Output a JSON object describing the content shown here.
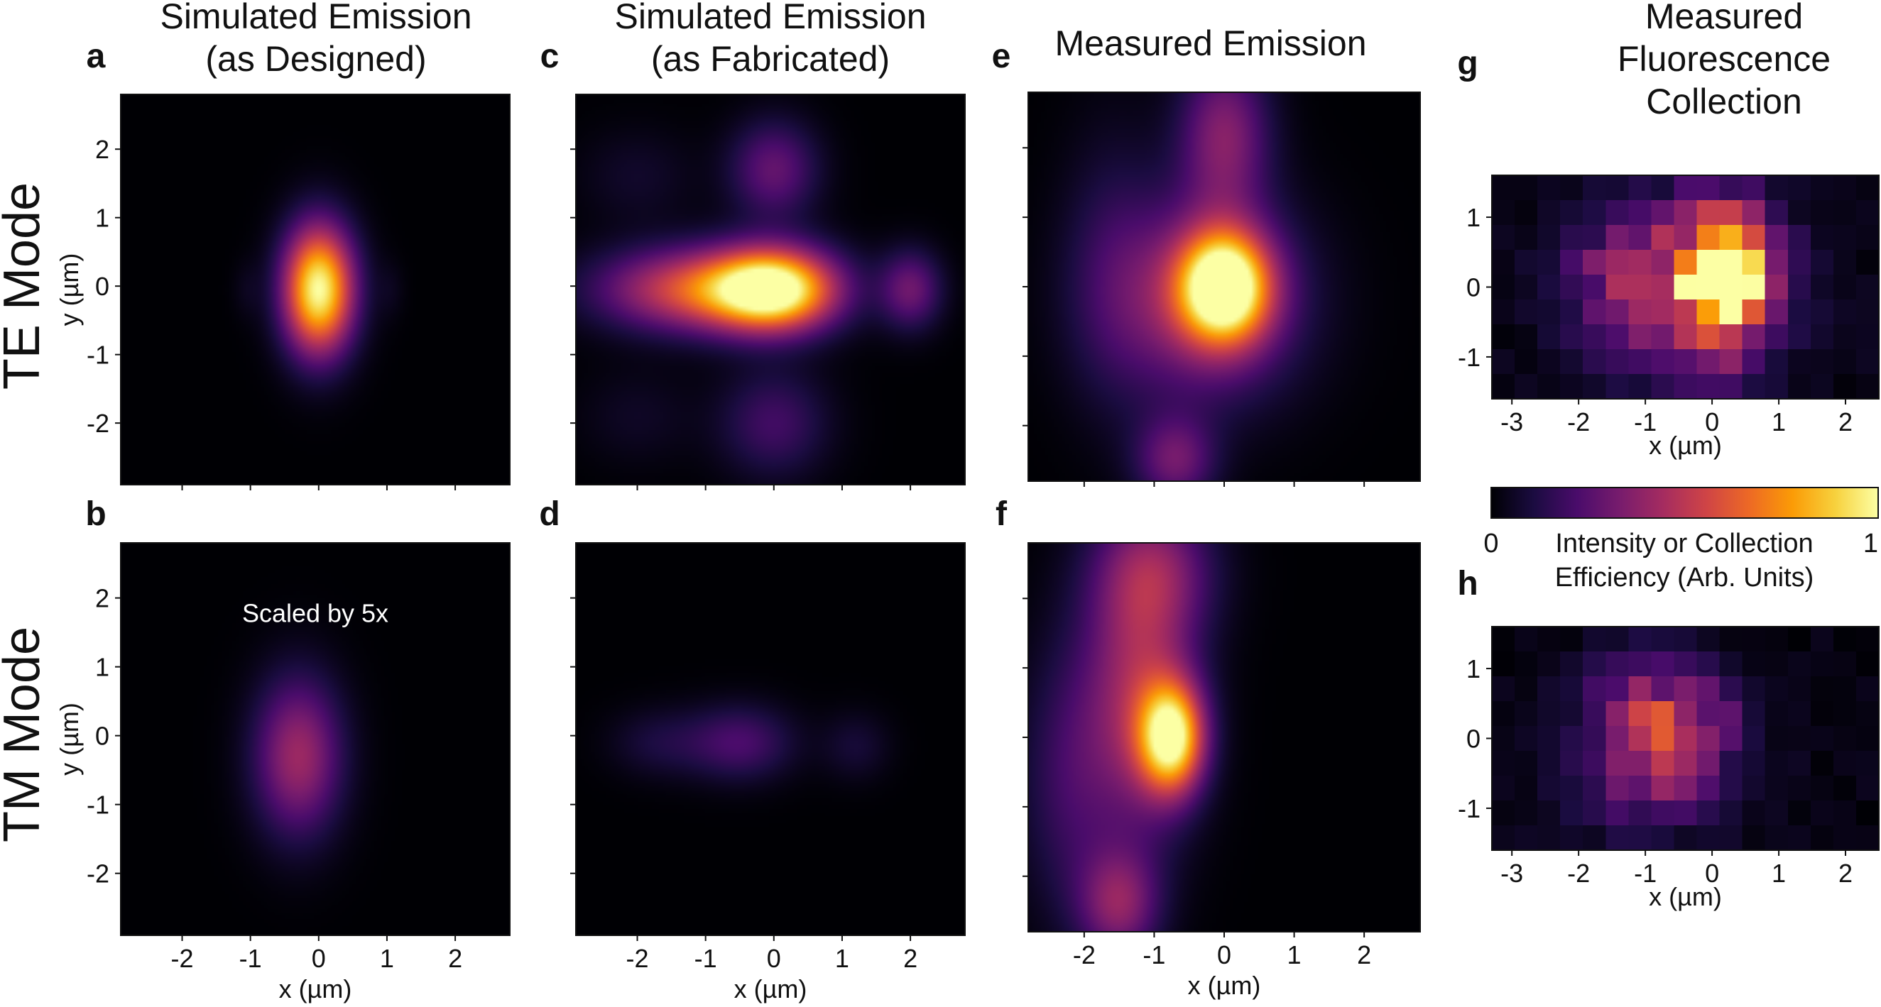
{
  "figure": {
    "row_labels": [
      "TE Mode",
      "TM Mode"
    ],
    "colorbar": {
      "min_label": "0",
      "max_label": "1",
      "label_line1": "Intensity or Collection",
      "label_line2": "Efficiency (Arb. Units)",
      "colormap": "inferno",
      "stops": [
        "#000004",
        "#1b0c41",
        "#4a0c6b",
        "#781c6d",
        "#a52c60",
        "#cf4446",
        "#ed6925",
        "#fb9b06",
        "#f7d13d",
        "#fcffa4"
      ]
    }
  },
  "chart_data": [
    {
      "id": "a",
      "panel_label": "a",
      "type": "heatmap",
      "title_lines": [
        "Simulated Emission",
        "(as Designed)"
      ],
      "xlabel": "",
      "ylabel": "y (µm)",
      "xlim": [
        -2.9,
        2.8
      ],
      "ylim": [
        -2.9,
        2.8
      ],
      "xticks": [
        "-2",
        "-1",
        "0",
        "1",
        "2"
      ],
      "yticks": [
        "-2",
        "-1",
        "0",
        "1",
        "2"
      ],
      "show_xticklabels": false,
      "show_yticklabels": true,
      "smooth": true,
      "blobs": [
        {
          "x": 0.0,
          "y": -0.05,
          "sx": 0.36,
          "sy": 0.65,
          "amp": 1.0
        },
        {
          "x": -1.05,
          "y": -0.05,
          "sx": 0.15,
          "sy": 0.3,
          "amp": 0.04
        },
        {
          "x": 1.05,
          "y": -0.05,
          "sx": 0.15,
          "sy": 0.3,
          "amp": 0.04
        }
      ]
    },
    {
      "id": "b",
      "panel_label": "b",
      "type": "heatmap",
      "title_lines": [],
      "xlabel": "x (µm)",
      "ylabel": "y (µm)",
      "xlim": [
        -2.9,
        2.8
      ],
      "ylim": [
        -2.9,
        2.8
      ],
      "xticks": [
        "-2",
        "-1",
        "0",
        "1",
        "2"
      ],
      "yticks": [
        "-2",
        "-1",
        "0",
        "1",
        "2"
      ],
      "show_xticklabels": true,
      "show_yticklabels": true,
      "smooth": true,
      "annotation": "Scaled by 5x",
      "blobs": [
        {
          "x": -0.3,
          "y": -0.3,
          "sx": 0.45,
          "sy": 0.8,
          "amp": 0.42
        }
      ]
    },
    {
      "id": "c",
      "panel_label": "c",
      "type": "heatmap",
      "title_lines": [
        "Simulated Emission",
        "(as Fabricated)"
      ],
      "xlabel": "",
      "ylabel": "",
      "xlim": [
        -2.9,
        2.8
      ],
      "ylim": [
        -2.9,
        2.8
      ],
      "xticks": [
        "-2",
        "-1",
        "0",
        "1",
        "2"
      ],
      "yticks": [
        "-2",
        "-1",
        "0",
        "1",
        "2"
      ],
      "show_xticklabels": false,
      "show_yticklabels": false,
      "smooth": true,
      "blobs": [
        {
          "x": 0.0,
          "y": -0.05,
          "sx": 0.65,
          "sy": 0.42,
          "amp": 1.0
        },
        {
          "x": -1.2,
          "y": -0.05,
          "sx": 0.95,
          "sy": 0.42,
          "amp": 0.55
        },
        {
          "x": 2.0,
          "y": -0.05,
          "sx": 0.32,
          "sy": 0.4,
          "amp": 0.3
        },
        {
          "x": 0.0,
          "y": 1.7,
          "sx": 0.45,
          "sy": 0.5,
          "amp": 0.28
        },
        {
          "x": 0.0,
          "y": -2.0,
          "sx": 0.55,
          "sy": 0.55,
          "amp": 0.2
        },
        {
          "x": -2.0,
          "y": 1.6,
          "sx": 0.6,
          "sy": 0.5,
          "amp": 0.07
        },
        {
          "x": -2.0,
          "y": -1.9,
          "sx": 0.6,
          "sy": 0.5,
          "amp": 0.06
        }
      ]
    },
    {
      "id": "d",
      "panel_label": "d",
      "type": "heatmap",
      "title_lines": [],
      "xlabel": "x (µm)",
      "ylabel": "",
      "xlim": [
        -2.9,
        2.8
      ],
      "ylim": [
        -2.9,
        2.8
      ],
      "xticks": [
        "-2",
        "-1",
        "0",
        "1",
        "2"
      ],
      "yticks": [
        "-2",
        "-1",
        "0",
        "1",
        "2"
      ],
      "show_xticklabels": true,
      "show_yticklabels": false,
      "smooth": true,
      "blobs": [
        {
          "x": -0.5,
          "y": -0.1,
          "sx": 0.55,
          "sy": 0.38,
          "amp": 0.22
        },
        {
          "x": -1.7,
          "y": -0.1,
          "sx": 0.5,
          "sy": 0.35,
          "amp": 0.1
        },
        {
          "x": 1.2,
          "y": -0.15,
          "sx": 0.35,
          "sy": 0.35,
          "amp": 0.09
        }
      ]
    },
    {
      "id": "e",
      "panel_label": "e",
      "type": "heatmap",
      "title_lines": [
        "Measured Emission"
      ],
      "xlabel": "",
      "ylabel": "",
      "xlim": [
        -2.8,
        2.8
      ],
      "ylim": [
        -2.8,
        2.8
      ],
      "xticks": [
        "-2",
        "-1",
        "0",
        "1",
        "2"
      ],
      "yticks": [
        "-2",
        "-1",
        "0",
        "1",
        "2"
      ],
      "show_xticklabels": false,
      "show_yticklabels": false,
      "smooth": true,
      "blobs": [
        {
          "x": 0.0,
          "y": 0.0,
          "sx": 0.45,
          "sy": 0.55,
          "amp": 1.0
        },
        {
          "x": -0.3,
          "y": -0.2,
          "sx": 0.95,
          "sy": 1.0,
          "amp": 0.4
        },
        {
          "x": 0.0,
          "y": 2.2,
          "sx": 0.45,
          "sy": 0.8,
          "amp": 0.35
        },
        {
          "x": -0.7,
          "y": -2.5,
          "sx": 0.4,
          "sy": 0.45,
          "amp": 0.3
        },
        {
          "x": -1.6,
          "y": 0.3,
          "sx": 0.5,
          "sy": 1.4,
          "amp": 0.12
        }
      ]
    },
    {
      "id": "f",
      "panel_label": "f",
      "type": "heatmap",
      "title_lines": [],
      "xlabel": "x (µm)",
      "ylabel": "",
      "xlim": [
        -2.8,
        2.8
      ],
      "ylim": [
        -2.8,
        2.8
      ],
      "xticks": [
        "-2",
        "-1",
        "0",
        "1",
        "2"
      ],
      "yticks": [
        "-2",
        "-1",
        "0",
        "1",
        "2"
      ],
      "show_xticklabels": true,
      "show_yticklabels": false,
      "smooth": true,
      "blobs": [
        {
          "x": -0.75,
          "y": 0.0,
          "sx": 0.32,
          "sy": 0.55,
          "amp": 0.9
        },
        {
          "x": -1.2,
          "y": 0.6,
          "sx": 0.55,
          "sy": 1.4,
          "amp": 0.42
        },
        {
          "x": -1.0,
          "y": 2.4,
          "sx": 0.6,
          "sy": 0.7,
          "amp": 0.3
        },
        {
          "x": -1.5,
          "y": -2.4,
          "sx": 0.4,
          "sy": 0.55,
          "amp": 0.35
        },
        {
          "x": -2.2,
          "y": -0.6,
          "sx": 0.5,
          "sy": 1.4,
          "amp": 0.18
        }
      ]
    },
    {
      "id": "g",
      "panel_label": "g",
      "type": "heatmap",
      "title_lines": [
        "Measured",
        "Fluorescence",
        "Collection"
      ],
      "xlabel": "x (µm)",
      "ylabel": "",
      "xlim": [
        -3.3,
        2.5
      ],
      "ylim": [
        -1.6,
        1.6
      ],
      "xticks": [
        "-3",
        "-2",
        "-1",
        "0",
        "1",
        "2"
      ],
      "yticks": [
        "-1",
        "0",
        "1"
      ],
      "show_xticklabels": true,
      "show_yticklabels": true,
      "smooth": false,
      "ncols": 17,
      "nrows": 9,
      "blobs": [
        {
          "x": 0.2,
          "y": 0.1,
          "sx": 0.42,
          "sy": 0.65,
          "amp": 0.95
        },
        {
          "x": -0.4,
          "y": 0.0,
          "sx": 1.0,
          "sy": 0.85,
          "amp": 0.45
        },
        {
          "x": -1.5,
          "y": 0.2,
          "sx": 0.6,
          "sy": 0.6,
          "amp": 0.12
        }
      ]
    },
    {
      "id": "h",
      "panel_label": "h",
      "type": "heatmap",
      "title_lines": [],
      "xlabel": "x (µm)",
      "ylabel": "",
      "xlim": [
        -3.3,
        2.5
      ],
      "ylim": [
        -1.6,
        1.6
      ],
      "xticks": [
        "-3",
        "-2",
        "-1",
        "0",
        "1",
        "2"
      ],
      "yticks": [
        "-1",
        "0",
        "1"
      ],
      "show_xticklabels": true,
      "show_yticklabels": true,
      "smooth": false,
      "ncols": 17,
      "nrows": 9,
      "blobs": [
        {
          "x": -0.9,
          "y": 0.2,
          "sx": 0.7,
          "sy": 0.65,
          "amp": 0.42
        },
        {
          "x": -0.2,
          "y": 0.1,
          "sx": 0.5,
          "sy": 0.5,
          "amp": 0.18
        },
        {
          "x": -1.0,
          "y": -0.8,
          "sx": 0.9,
          "sy": 0.5,
          "amp": 0.15
        }
      ]
    }
  ]
}
